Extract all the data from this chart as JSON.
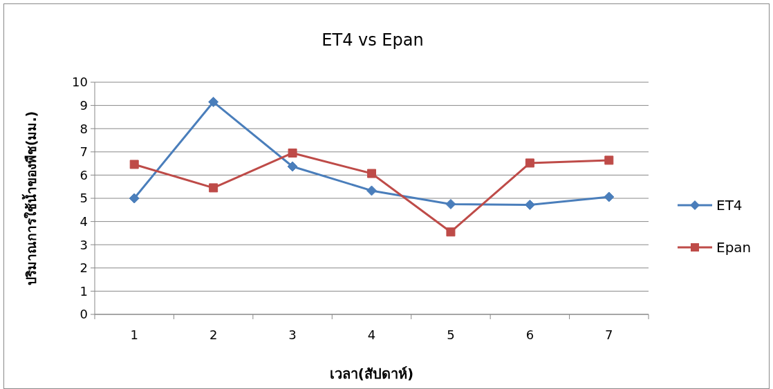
{
  "chart_data": {
    "type": "line",
    "title": "ET4 vs Epan",
    "xlabel": "เวลา(สัปดาห์)",
    "ylabel": "ปริมาณการใช้น้ำของพืช(มม.)",
    "categories": [
      "1",
      "2",
      "3",
      "4",
      "5",
      "6",
      "7"
    ],
    "series": [
      {
        "name": "ET4",
        "color": "#4a7ebb",
        "marker": "diamond",
        "values": [
          5.0,
          9.15,
          6.37,
          5.33,
          4.75,
          4.72,
          5.06
        ]
      },
      {
        "name": "Epan",
        "color": "#be4b48",
        "marker": "square",
        "values": [
          6.46,
          5.45,
          6.95,
          6.07,
          3.55,
          6.52,
          6.64
        ]
      }
    ],
    "ylim": [
      0,
      10
    ],
    "yticks": [
      0,
      1,
      2,
      3,
      4,
      5,
      6,
      7,
      8,
      9,
      10
    ],
    "grid": "y",
    "legend": "right",
    "line_style": "solid"
  }
}
